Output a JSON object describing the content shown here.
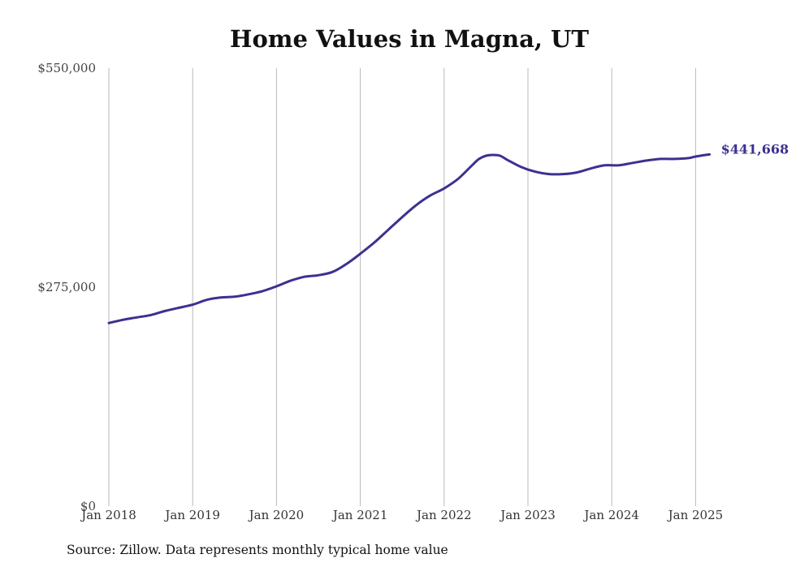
{
  "chart_data": {
    "type": "line",
    "title": "Home Values in Magna, UT",
    "source": "Source: Zillow. Data represents monthly typical home value",
    "ylim": [
      0,
      550000
    ],
    "y_ticks": [
      {
        "value": 0,
        "label": "$0"
      },
      {
        "value": 275000,
        "label": "$275,000"
      },
      {
        "value": 550000,
        "label": "$550,000"
      }
    ],
    "x_ticks": [
      {
        "value": "2018-01",
        "label": "Jan 2018"
      },
      {
        "value": "2019-01",
        "label": "Jan 2019"
      },
      {
        "value": "2020-01",
        "label": "Jan 2020"
      },
      {
        "value": "2021-01",
        "label": "Jan 2021"
      },
      {
        "value": "2022-01",
        "label": "Jan 2022"
      },
      {
        "value": "2023-01",
        "label": "Jan 2023"
      },
      {
        "value": "2024-01",
        "label": "Jan 2024"
      },
      {
        "value": "2025-01",
        "label": "Jan 2025"
      }
    ],
    "xlim": [
      "2018-01",
      "2025-03"
    ],
    "grid": "vertical",
    "line_color": "#3b3191",
    "end_label": "$441,668",
    "series": [
      {
        "points": [
          [
            "2018-01",
            230000
          ],
          [
            "2018-03",
            234000
          ],
          [
            "2018-05",
            237000
          ],
          [
            "2018-07",
            240000
          ],
          [
            "2018-09",
            245000
          ],
          [
            "2018-11",
            249000
          ],
          [
            "2019-01",
            253000
          ],
          [
            "2019-03",
            259000
          ],
          [
            "2019-05",
            262000
          ],
          [
            "2019-07",
            263000
          ],
          [
            "2019-09",
            266000
          ],
          [
            "2019-11",
            270000
          ],
          [
            "2020-01",
            276000
          ],
          [
            "2020-03",
            283000
          ],
          [
            "2020-05",
            288000
          ],
          [
            "2020-07",
            290000
          ],
          [
            "2020-09",
            294000
          ],
          [
            "2020-11",
            304000
          ],
          [
            "2021-01",
            317000
          ],
          [
            "2021-03",
            331000
          ],
          [
            "2021-05",
            347000
          ],
          [
            "2021-07",
            363000
          ],
          [
            "2021-09",
            378000
          ],
          [
            "2021-11",
            390000
          ],
          [
            "2022-01",
            399000
          ],
          [
            "2022-03",
            411000
          ],
          [
            "2022-05",
            428000
          ],
          [
            "2022-06",
            436000
          ],
          [
            "2022-07",
            440000
          ],
          [
            "2022-08",
            441000
          ],
          [
            "2022-09",
            440000
          ],
          [
            "2022-10",
            435000
          ],
          [
            "2022-12",
            426000
          ],
          [
            "2023-02",
            420000
          ],
          [
            "2023-04",
            417000
          ],
          [
            "2023-06",
            417000
          ],
          [
            "2023-08",
            419000
          ],
          [
            "2023-10",
            424000
          ],
          [
            "2023-12",
            428000
          ],
          [
            "2024-02",
            428000
          ],
          [
            "2024-04",
            431000
          ],
          [
            "2024-06",
            434000
          ],
          [
            "2024-08",
            436000
          ],
          [
            "2024-10",
            436000
          ],
          [
            "2024-12",
            437000
          ],
          [
            "2025-01",
            439000
          ],
          [
            "2025-03",
            441668
          ]
        ]
      }
    ]
  }
}
